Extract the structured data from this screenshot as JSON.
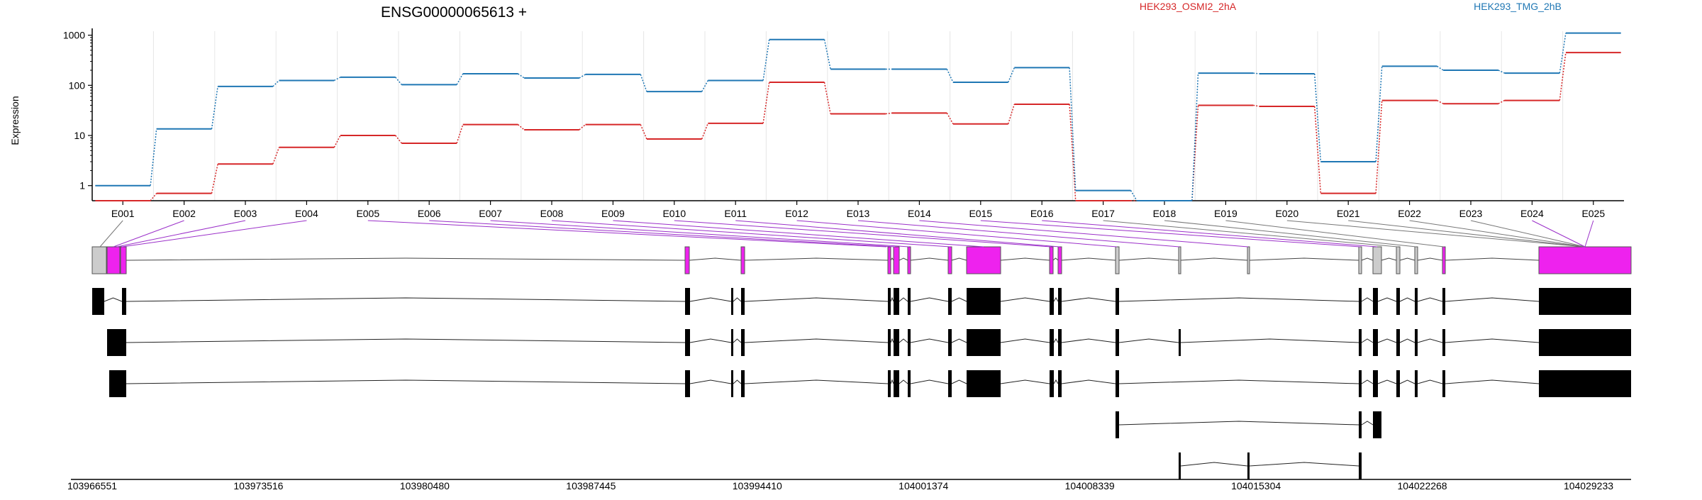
{
  "chart_data": {
    "type": "line",
    "title": "ENSG00000065613 +",
    "ylabel": "Expression",
    "y_scale": "log",
    "ylim": [
      0.5,
      1200
    ],
    "y_ticks": [
      {
        "value": 1,
        "label": "1"
      },
      {
        "value": 10,
        "label": "10"
      },
      {
        "value": 100,
        "label": "100"
      },
      {
        "value": 1000,
        "label": "1000"
      }
    ],
    "grid": true,
    "legend": [
      {
        "name": "HEK293_OSMI2_2hA",
        "color": "#d62728"
      },
      {
        "name": "HEK293_TMG_2hB",
        "color": "#1f77b4"
      }
    ],
    "categories": [
      "E001",
      "E002",
      "E003",
      "E004",
      "E005",
      "E006",
      "E007",
      "E008",
      "E009",
      "E010",
      "E011",
      "E012",
      "E013",
      "E014",
      "E015",
      "E016",
      "E017",
      "E018",
      "E019",
      "E020",
      "E021",
      "E022",
      "E023",
      "E024",
      "E025"
    ],
    "series": [
      {
        "name": "HEK293_OSMI2_2hA",
        "color": "#d62728",
        "values": [
          0.5,
          0.7,
          2.7,
          5.8,
          10,
          7,
          16.5,
          13,
          16.5,
          8.5,
          17.5,
          115,
          27,
          28,
          17,
          42,
          0.5,
          0.5,
          40,
          38,
          0.7,
          50,
          43,
          50,
          450
        ]
      },
      {
        "name": "HEK293_TMG_2hB",
        "color": "#1f77b4",
        "values": [
          1,
          13.5,
          95,
          125,
          145,
          103,
          170,
          140,
          165,
          75,
          125,
          820,
          210,
          210,
          115,
          225,
          0.8,
          0.5,
          175,
          170,
          3,
          240,
          200,
          175,
          1100
        ]
      }
    ],
    "genome_axis_ticks": [
      "103966551",
      "103973516",
      "103980480",
      "103987445",
      "103994410",
      "104001374",
      "104008339",
      "104015304",
      "104022268",
      "104029233"
    ]
  },
  "colors": {
    "highlight_exon": "#ee22ee",
    "other_exon": "#cccccc",
    "transcript_exon": "#000000",
    "connector": "#9b30c9"
  }
}
